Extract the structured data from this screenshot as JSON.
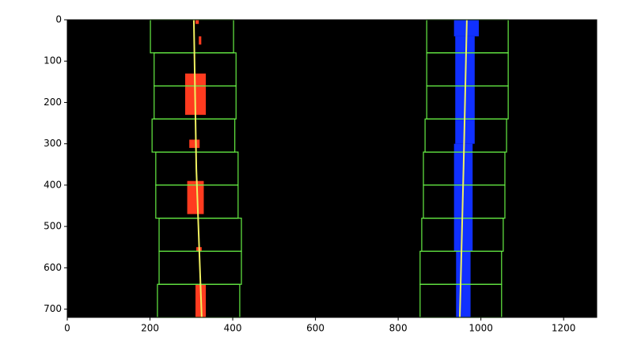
{
  "chart_data": {
    "type": "image",
    "xlim": [
      0,
      1280
    ],
    "ylim": [
      720,
      0
    ],
    "xticks": [
      0,
      200,
      400,
      600,
      800,
      1000,
      1200
    ],
    "yticks": [
      0,
      100,
      200,
      300,
      400,
      500,
      600,
      700
    ],
    "background": "#000000",
    "window_color": "#66ee44",
    "windows": [
      {
        "x": [
          201,
          402
        ],
        "y": [
          0,
          80
        ]
      },
      {
        "x": [
          210,
          408
        ],
        "y": [
          80,
          160
        ]
      },
      {
        "x": [
          210,
          408
        ],
        "y": [
          160,
          240
        ]
      },
      {
        "x": [
          205,
          405
        ],
        "y": [
          240,
          320
        ]
      },
      {
        "x": [
          214,
          413
        ],
        "y": [
          320,
          400
        ]
      },
      {
        "x": [
          214,
          413
        ],
        "y": [
          400,
          480
        ]
      },
      {
        "x": [
          222,
          421
        ],
        "y": [
          480,
          560
        ]
      },
      {
        "x": [
          222,
          421
        ],
        "y": [
          560,
          640
        ]
      },
      {
        "x": [
          218,
          417
        ],
        "y": [
          640,
          720
        ]
      },
      {
        "x": [
          869,
          1066
        ],
        "y": [
          0,
          80
        ]
      },
      {
        "x": [
          869,
          1066
        ],
        "y": [
          80,
          160
        ]
      },
      {
        "x": [
          869,
          1066
        ],
        "y": [
          160,
          240
        ]
      },
      {
        "x": [
          865,
          1062
        ],
        "y": [
          240,
          320
        ]
      },
      {
        "x": [
          861,
          1058
        ],
        "y": [
          320,
          400
        ]
      },
      {
        "x": [
          861,
          1058
        ],
        "y": [
          400,
          480
        ]
      },
      {
        "x": [
          857,
          1054
        ],
        "y": [
          480,
          560
        ]
      },
      {
        "x": [
          853,
          1050
        ],
        "y": [
          560,
          640
        ]
      },
      {
        "x": [
          853,
          1050
        ],
        "y": [
          640,
          720
        ]
      }
    ],
    "pixels": [
      {
        "color": "#ff3b1f",
        "x": [
          310,
          318
        ],
        "y": [
          0,
          10
        ]
      },
      {
        "color": "#ff3b1f",
        "x": [
          318,
          324
        ],
        "y": [
          40,
          60
        ]
      },
      {
        "color": "#ff3b1f",
        "x": [
          285,
          335
        ],
        "y": [
          130,
          230
        ]
      },
      {
        "color": "#ff3b1f",
        "x": [
          295,
          320
        ],
        "y": [
          290,
          310
        ]
      },
      {
        "color": "#ff3b1f",
        "x": [
          290,
          330
        ],
        "y": [
          390,
          470
        ]
      },
      {
        "color": "#ff3b1f",
        "x": [
          312,
          325
        ],
        "y": [
          550,
          560
        ]
      },
      {
        "color": "#ff3b1f",
        "x": [
          310,
          335
        ],
        "y": [
          640,
          720
        ]
      },
      {
        "color": "#1030ff",
        "x": [
          935,
          995
        ],
        "y": [
          0,
          40
        ]
      },
      {
        "color": "#1030ff",
        "x": [
          938,
          985
        ],
        "y": [
          40,
          300
        ]
      },
      {
        "color": "#1030ff",
        "x": [
          935,
          980
        ],
        "y": [
          300,
          560
        ]
      },
      {
        "color": "#1030ff",
        "x": [
          940,
          975
        ],
        "y": [
          560,
          720
        ]
      }
    ],
    "fit_color": "#f0f060",
    "fits": [
      {
        "x": [
          306,
          312,
          325
        ],
        "y": [
          0,
          360,
          720
        ]
      },
      {
        "x": [
          966,
          958,
          949
        ],
        "y": [
          0,
          360,
          720
        ]
      }
    ]
  }
}
